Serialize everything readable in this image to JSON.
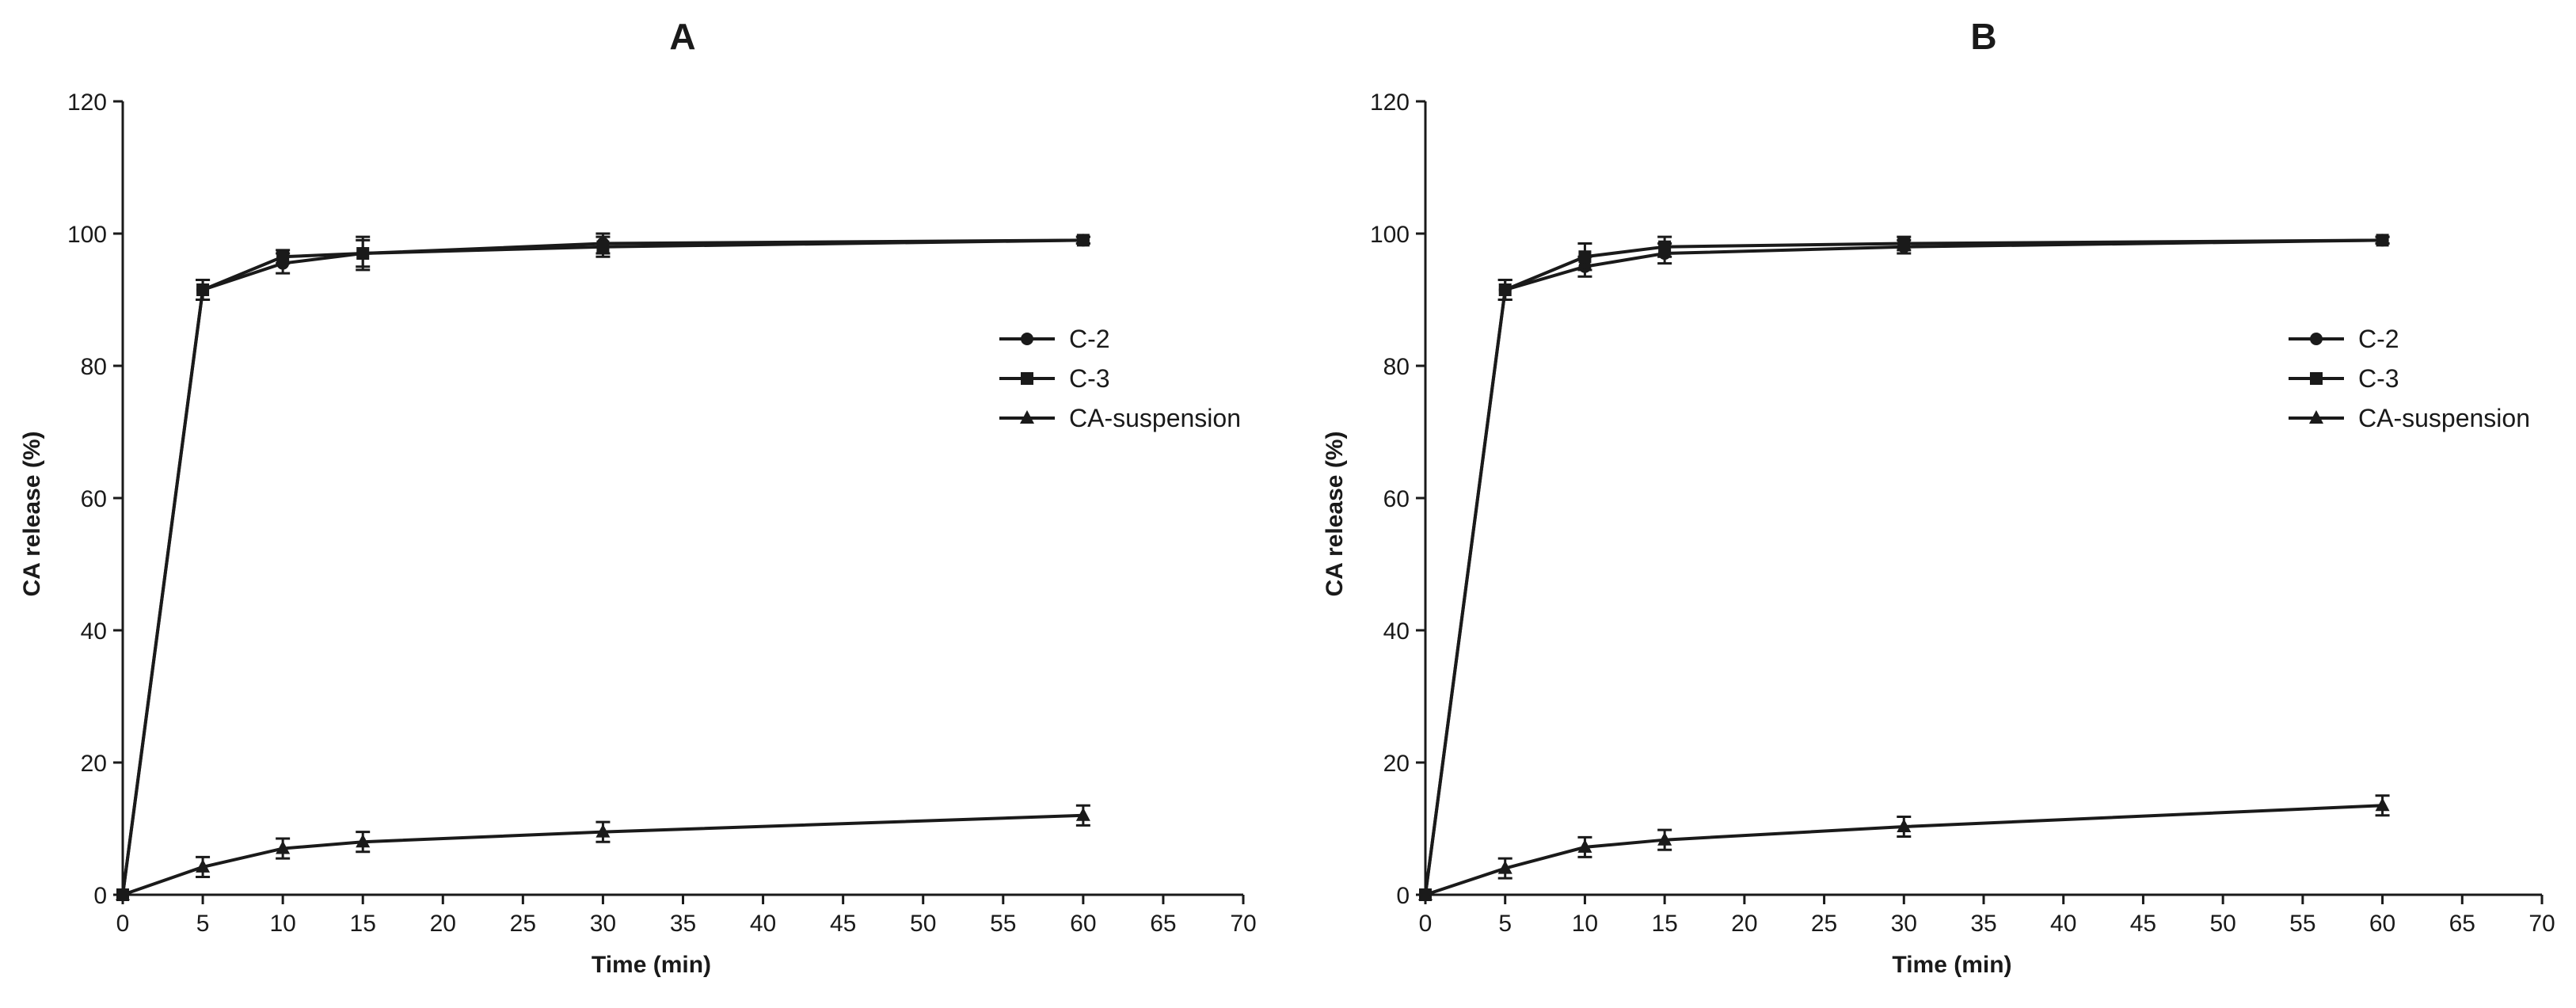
{
  "chart_data": [
    {
      "type": "line",
      "title": "A",
      "xlabel": "Time (min)",
      "ylabel": "CA release (%)",
      "xlim": [
        0,
        70
      ],
      "ylim": [
        0,
        120
      ],
      "x_ticks": [
        "0",
        "5",
        "10",
        "15",
        "20",
        "25",
        "30",
        "35",
        "40",
        "45",
        "50",
        "55",
        "60",
        "65",
        "70"
      ],
      "y_ticks": [
        "0",
        "20",
        "40",
        "60",
        "80",
        "100",
        "120"
      ],
      "grid": false,
      "legend_position": "right",
      "x": [
        0,
        5,
        10,
        15,
        30,
        60
      ],
      "series": [
        {
          "name": "C-2",
          "marker": "circle",
          "values": [
            0,
            91.5,
            95.5,
            97.0,
            98.5,
            99.0
          ],
          "error": [
            0,
            1.5,
            1.5,
            2.5,
            1.5,
            0.5
          ]
        },
        {
          "name": "C-3",
          "marker": "square",
          "values": [
            0,
            91.5,
            96.5,
            97.0,
            98.0,
            99.0
          ],
          "error": [
            0,
            1.5,
            1.0,
            2.0,
            1.5,
            0.5
          ]
        },
        {
          "name": "CA-suspension",
          "marker": "triangle",
          "values": [
            0,
            4.2,
            7.0,
            8.0,
            9.5,
            12.0
          ],
          "error": [
            0,
            1.5,
            1.5,
            1.5,
            1.5,
            1.5
          ]
        }
      ]
    },
    {
      "type": "line",
      "title": "B",
      "xlabel": "Time (min)",
      "ylabel": "CA release (%)",
      "xlim": [
        0,
        70
      ],
      "ylim": [
        0,
        120
      ],
      "x_ticks": [
        "0",
        "5",
        "10",
        "15",
        "20",
        "25",
        "30",
        "35",
        "40",
        "45",
        "50",
        "55",
        "60",
        "65",
        "70"
      ],
      "y_ticks": [
        "0",
        "20",
        "40",
        "60",
        "80",
        "100",
        "120"
      ],
      "grid": false,
      "legend_position": "right",
      "x": [
        0,
        5,
        10,
        15,
        30,
        60
      ],
      "series": [
        {
          "name": "C-2",
          "marker": "circle",
          "values": [
            0,
            91.5,
            95.0,
            97.0,
            98.0,
            99.0
          ],
          "error": [
            0,
            1.5,
            1.5,
            1.5,
            1.0,
            0.5
          ]
        },
        {
          "name": "C-3",
          "marker": "square",
          "values": [
            0,
            91.5,
            96.5,
            98.0,
            98.5,
            99.0
          ],
          "error": [
            0,
            1.5,
            2.0,
            1.5,
            1.0,
            0.5
          ]
        },
        {
          "name": "CA-suspension",
          "marker": "triangle",
          "values": [
            0,
            4.0,
            7.2,
            8.3,
            10.3,
            13.5
          ],
          "error": [
            0,
            1.5,
            1.5,
            1.5,
            1.5,
            1.5
          ]
        }
      ]
    }
  ]
}
